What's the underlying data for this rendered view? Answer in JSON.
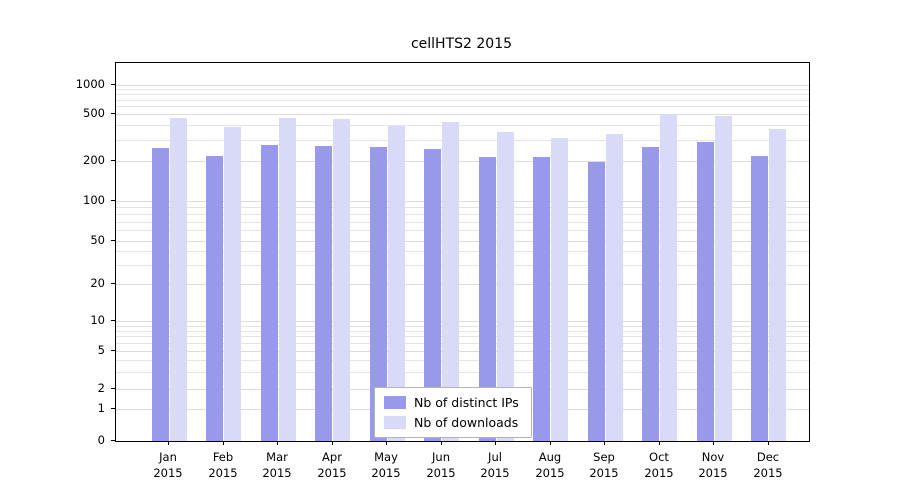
{
  "chart_data": {
    "type": "bar",
    "title": "cellHTS2 2015",
    "categories": [
      "Jan",
      "Feb",
      "Mar",
      "Apr",
      "May",
      "Jun",
      "Jul",
      "Aug",
      "Sep",
      "Oct",
      "Nov",
      "Dec"
    ],
    "year_label": "2015",
    "series": [
      {
        "name": "Nb of distinct IPs",
        "color": "#9999ec",
        "values": [
          260,
          220,
          275,
          268,
          262,
          252,
          218,
          215,
          196,
          262,
          290,
          222
        ]
      },
      {
        "name": "Nb of downloads",
        "color": "#d9d9f8",
        "values": [
          465,
          390,
          460,
          458,
          395,
          430,
          350,
          312,
          340,
          505,
          478,
          372
        ]
      }
    ],
    "yticks": [
      0,
      1,
      2,
      5,
      10,
      20,
      50,
      100,
      200,
      500,
      1000
    ],
    "ylim": [
      0,
      1000
    ],
    "scale": "log",
    "grid": true,
    "legend_position": "bottom-center"
  }
}
